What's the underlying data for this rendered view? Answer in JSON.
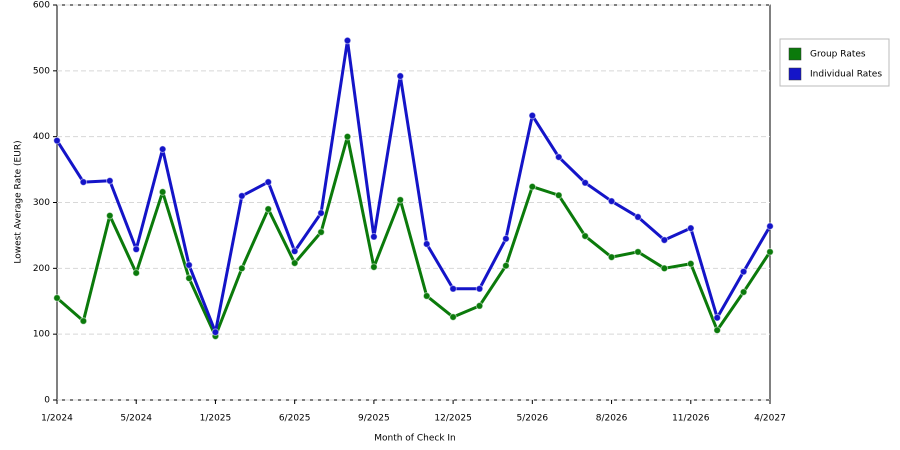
{
  "chart_data": {
    "type": "line",
    "x_label": "Month of Check In",
    "y_label": "Lowest Average Rate (EUR)",
    "categories": [
      "1/2024",
      null,
      null,
      "5/2024",
      null,
      null,
      "1/2025",
      null,
      null,
      "6/2025",
      null,
      null,
      "9/2025",
      null,
      null,
      "12/2025",
      null,
      null,
      "5/2026",
      null,
      null,
      "8/2026",
      null,
      null,
      "11/2026",
      null,
      null,
      "4/2027"
    ],
    "series": [
      {
        "name": "Group Rates",
        "color": "#0b7a0b",
        "values": [
          155,
          120,
          280,
          193,
          316,
          185,
          97,
          200,
          290,
          208,
          255,
          400,
          202,
          304,
          158,
          126,
          143,
          204,
          324,
          311,
          249,
          217,
          225,
          200,
          207,
          106,
          164,
          225
        ]
      },
      {
        "name": "Individual Rates",
        "color": "#1414c8",
        "values": [
          394,
          331,
          333,
          229,
          381,
          205,
          103,
          310,
          331,
          226,
          284,
          546,
          248,
          492,
          237,
          169,
          169,
          245,
          432,
          369,
          330,
          302,
          278,
          243,
          261,
          125,
          195,
          264
        ]
      }
    ],
    "ylim": [
      0,
      600
    ],
    "yticks": [
      0,
      100,
      200,
      300,
      400,
      500,
      600
    ],
    "grid": true,
    "legend": "right"
  }
}
